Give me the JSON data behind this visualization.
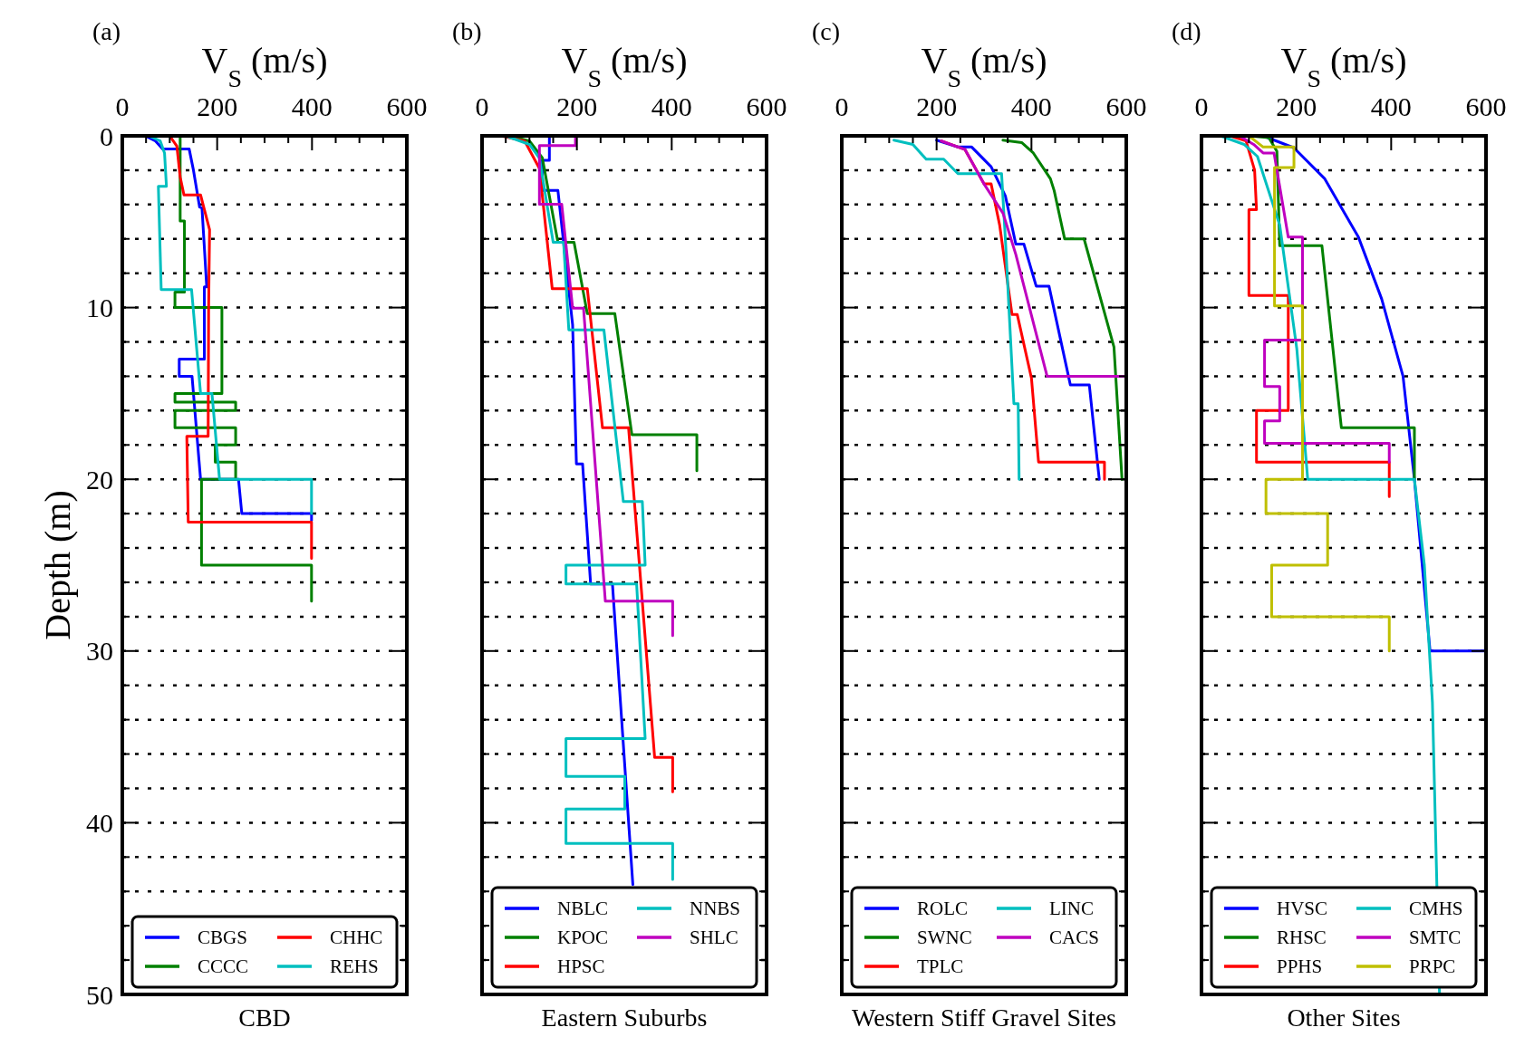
{
  "chart_data": [
    {
      "type": "line",
      "title": "(a)",
      "xlabel": "V$_{S}$ (m/s)",
      "ylabel": "Depth (m)",
      "annotations": [
        "CBD"
      ],
      "xlim": [
        0,
        600
      ],
      "ylim": [
        50,
        0
      ],
      "xticks": [
        0,
        {
          "value": 50,
          "label": null
        },
        {
          "value": 100,
          "label": null
        },
        {
          "value": 150,
          "label": null
        },
        200,
        {
          "value": 250,
          "label": null
        },
        {
          "value": 300,
          "label": null
        },
        {
          "value": 350,
          "label": null
        },
        400,
        {
          "value": 450,
          "label": null
        },
        {
          "value": 500,
          "label": null
        },
        {
          "value": 550,
          "label": null
        },
        600
      ],
      "yticks": [
        0,
        {
          "value": 2,
          "label": null
        },
        {
          "value": 4,
          "label": null
        },
        {
          "value": 6,
          "label": null
        },
        {
          "value": 8,
          "label": null
        },
        10,
        {
          "value": 12,
          "label": null
        },
        {
          "value": 14,
          "label": null
        },
        {
          "value": 16,
          "label": null
        },
        {
          "value": 18,
          "label": null
        },
        20,
        {
          "value": 22,
          "label": null
        },
        {
          "value": 24,
          "label": null
        },
        {
          "value": 26,
          "label": null
        },
        {
          "value": 28,
          "label": null
        },
        30,
        {
          "value": 32,
          "label": null
        },
        {
          "value": 34,
          "label": null
        },
        {
          "value": 36,
          "label": null
        },
        {
          "value": 38,
          "label": null
        },
        40,
        {
          "value": 42,
          "label": null
        },
        {
          "value": 44,
          "label": null
        },
        {
          "value": 46,
          "label": null
        },
        {
          "value": 48,
          "label": null
        },
        50
      ],
      "grid": "y",
      "legend": "bottom",
      "line_style": "solid",
      "series": [
        {
          "name": "CBGS",
          "color": "#0000ff",
          "x": [
            48,
            70,
            85,
            141,
            150,
            163,
            168,
            178,
            173,
            173,
            120,
            120,
            147,
            165,
            245,
            252,
            399,
            399
          ],
          "values": [
            0,
            0.3,
            0.77,
            0.77,
            2,
            4.15,
            4.2,
            8.8,
            8.8,
            13,
            13,
            14,
            14,
            20,
            20,
            22,
            22,
            22.4
          ]
        },
        {
          "name": "CCCC",
          "color": "#008000",
          "x": [
            122,
            122,
            131,
            131,
            111,
            111,
            210,
            210,
            111,
            111,
            239,
            239,
            111,
            111,
            239,
            239,
            196,
            196,
            239,
            239,
            167,
            167,
            399,
            399
          ],
          "values": [
            0,
            4.96,
            4.96,
            9.1,
            9.1,
            10,
            10,
            15,
            15,
            15.5,
            15.5,
            16,
            16,
            17,
            17,
            18,
            18,
            19,
            19,
            20,
            20,
            25,
            25,
            27.1
          ]
        },
        {
          "name": "CHHC",
          "color": "#ff0000",
          "x": [
            100,
            115,
            122,
            130,
            165,
            184,
            182,
            181,
            136,
            139,
            399,
            399
          ],
          "values": [
            0,
            0.6,
            2.4,
            3.44,
            3.44,
            5.47,
            10,
            17.5,
            17.5,
            22.5,
            22.5,
            24.6
          ]
        },
        {
          "name": "REHS",
          "color": "#00bfbf",
          "x": [
            56,
            80,
            89,
            93,
            76,
            82,
            146,
            165,
            189,
            205,
            399,
            399
          ],
          "values": [
            0,
            0.3,
            1,
            2.94,
            2.94,
            8.95,
            8.95,
            15,
            15,
            20,
            20,
            22
          ]
        }
      ]
    },
    {
      "type": "line",
      "title": "(b)",
      "xlabel": "V$_{S}$ (m/s)",
      "annotations": [
        "Eastern Suburbs"
      ],
      "xlim": [
        0,
        600
      ],
      "ylim": [
        50,
        0
      ],
      "tick_labels": "x",
      "xticks": [
        0,
        {
          "value": 50,
          "label": null
        },
        {
          "value": 100,
          "label": null
        },
        {
          "value": 150,
          "label": null
        },
        200,
        {
          "value": 250,
          "label": null
        },
        {
          "value": 300,
          "label": null
        },
        {
          "value": 350,
          "label": null
        },
        400,
        {
          "value": 450,
          "label": null
        },
        {
          "value": 500,
          "label": null
        },
        {
          "value": 550,
          "label": null
        },
        600
      ],
      "yticks": [
        0,
        {
          "value": 2,
          "label": null
        },
        {
          "value": 4,
          "label": null
        },
        {
          "value": 6,
          "label": null
        },
        {
          "value": 8,
          "label": null
        },
        10,
        {
          "value": 12,
          "label": null
        },
        {
          "value": 14,
          "label": null
        },
        {
          "value": 16,
          "label": null
        },
        {
          "value": 18,
          "label": null
        },
        20,
        {
          "value": 22,
          "label": null
        },
        {
          "value": 24,
          "label": null
        },
        {
          "value": 26,
          "label": null
        },
        {
          "value": 28,
          "label": null
        },
        30,
        {
          "value": 32,
          "label": null
        },
        {
          "value": 34,
          "label": null
        },
        {
          "value": 36,
          "label": null
        },
        {
          "value": 38,
          "label": null
        },
        40,
        {
          "value": 42,
          "label": null
        },
        {
          "value": 44,
          "label": null
        },
        {
          "value": 46,
          "label": null
        },
        {
          "value": 48,
          "label": null
        },
        50
      ],
      "grid": "y",
      "legend": "bottom",
      "line_style": "solid",
      "series": [
        {
          "name": "NBLC",
          "color": "#0000ff",
          "x": [
            142,
            142,
            127,
            127,
            160,
            191,
            199,
            212,
            229,
            275,
            318
          ],
          "values": [
            0,
            1.43,
            1.43,
            3.18,
            3.18,
            11,
            19.1,
            19.1,
            26.1,
            26.1,
            43.6
          ]
        },
        {
          "name": "KPOC",
          "color": "#008000",
          "x": [
            58,
            100,
            127,
            160,
            194,
            222,
            280,
            316,
            453,
            453
          ],
          "values": [
            0,
            0.3,
            1.27,
            6.2,
            6.2,
            10.35,
            10.35,
            17.4,
            17.4,
            19.5
          ]
        },
        {
          "name": "HPSC",
          "color": "#ff0000",
          "x": [
            40,
            90,
            121,
            148,
            222,
            254,
            309,
            364,
            402,
            402
          ],
          "values": [
            0,
            0.3,
            1.9,
            8.9,
            8.9,
            17,
            17,
            36.2,
            36.2,
            38.2
          ]
        },
        {
          "name": "NNBS",
          "color": "#00bfbf",
          "x": [
            50,
            100,
            121,
            150,
            172,
            183,
            257,
            298,
            338,
            344,
            177,
            177,
            326,
            344,
            177,
            177,
            301,
            301,
            177,
            177,
            402,
            402
          ],
          "values": [
            0,
            0.5,
            1.3,
            6.2,
            6.2,
            11.3,
            11.3,
            21.3,
            21.3,
            25,
            25,
            26.1,
            26.1,
            35.1,
            35.1,
            37.3,
            37.3,
            39.2,
            39.2,
            41.2,
            41.2,
            43.3
          ]
        },
        {
          "name": "SHLC",
          "color": "#bf00bf",
          "x": [
            197,
            197,
            121,
            121,
            168,
            191,
            214,
            260,
            402,
            402
          ],
          "values": [
            0,
            0.57,
            0.57,
            3.98,
            3.98,
            10.03,
            10.03,
            27.1,
            27.1,
            29.1
          ]
        }
      ]
    },
    {
      "type": "line",
      "title": "(c)",
      "xlabel": "V$_{S}$ (m/s)",
      "annotations": [
        "Western Stiff Gravel Sites"
      ],
      "xlim": [
        0,
        600
      ],
      "ylim": [
        50,
        0
      ],
      "tick_labels": "x",
      "xticks": [
        0,
        {
          "value": 50,
          "label": null
        },
        {
          "value": 100,
          "label": null
        },
        {
          "value": 150,
          "label": null
        },
        200,
        {
          "value": 250,
          "label": null
        },
        {
          "value": 300,
          "label": null
        },
        {
          "value": 350,
          "label": null
        },
        400,
        {
          "value": 450,
          "label": null
        },
        {
          "value": 500,
          "label": null
        },
        {
          "value": 550,
          "label": null
        },
        600
      ],
      "yticks": [
        0,
        {
          "value": 2,
          "label": null
        },
        {
          "value": 4,
          "label": null
        },
        {
          "value": 6,
          "label": null
        },
        {
          "value": 8,
          "label": null
        },
        10,
        {
          "value": 12,
          "label": null
        },
        {
          "value": 14,
          "label": null
        },
        {
          "value": 16,
          "label": null
        },
        {
          "value": 18,
          "label": null
        },
        20,
        {
          "value": 22,
          "label": null
        },
        {
          "value": 24,
          "label": null
        },
        {
          "value": 26,
          "label": null
        },
        {
          "value": 28,
          "label": null
        },
        30,
        {
          "value": 32,
          "label": null
        },
        {
          "value": 34,
          "label": null
        },
        {
          "value": 36,
          "label": null
        },
        {
          "value": 38,
          "label": null
        },
        40,
        {
          "value": 42,
          "label": null
        },
        {
          "value": 44,
          "label": null
        },
        {
          "value": 46,
          "label": null
        },
        {
          "value": 48,
          "label": null
        },
        50
      ],
      "grid": "y",
      "legend": "bottom",
      "line_style": "solid",
      "series": [
        {
          "name": "ROLC",
          "color": "#0000ff",
          "x": [
            200,
            245,
            274,
            315,
            345,
            367,
            384,
            410,
            437,
            482,
            522,
            543
          ],
          "values": [
            0.25,
            0.65,
            0.65,
            1.8,
            3.5,
            6.3,
            6.3,
            8.75,
            8.75,
            14.5,
            14.5,
            20
          ]
        },
        {
          "name": "SWNC",
          "color": "#008000",
          "x": [
            340,
            380,
            404,
            440,
            448,
            470,
            511,
            574,
            591
          ],
          "values": [
            0.25,
            0.4,
            1,
            2.5,
            3.2,
            6,
            6,
            12.3,
            20
          ]
        },
        {
          "name": "TPLC",
          "color": "#ff0000",
          "x": [
            210,
            260,
            300,
            315,
            333,
            359,
            370,
            400,
            415,
            554,
            554
          ],
          "values": [
            0.3,
            0.8,
            2.8,
            2.8,
            5.2,
            10.4,
            10.4,
            14.1,
            19,
            19,
            20
          ]
        },
        {
          "name": "LINC",
          "color": "#00bfbf",
          "x": [
            110,
            150,
            178,
            215,
            245,
            337,
            345,
            363,
            372,
            374
          ],
          "values": [
            0.25,
            0.5,
            1.36,
            1.36,
            2.2,
            2.2,
            6,
            15.6,
            15.6,
            20
          ]
        },
        {
          "name": "CACS",
          "color": "#bf00bf",
          "x": [
            210,
            260,
            300,
            340,
            367,
            433,
            600
          ],
          "values": [
            0.3,
            0.8,
            2.8,
            4.5,
            6.9,
            14,
            14
          ]
        }
      ]
    },
    {
      "type": "line",
      "title": "(d)",
      "xlabel": "V$_{S}$ (m/s)",
      "annotations": [
        "Other Sites"
      ],
      "xlim": [
        0,
        600
      ],
      "ylim": [
        50,
        0
      ],
      "tick_labels": "x",
      "xticks": [
        0,
        {
          "value": 50,
          "label": null
        },
        {
          "value": 100,
          "label": null
        },
        {
          "value": 150,
          "label": null
        },
        200,
        {
          "value": 250,
          "label": null
        },
        {
          "value": 300,
          "label": null
        },
        {
          "value": 350,
          "label": null
        },
        400,
        {
          "value": 450,
          "label": null
        },
        {
          "value": 500,
          "label": null
        },
        {
          "value": 550,
          "label": null
        },
        600
      ],
      "yticks": [
        0,
        {
          "value": 2,
          "label": null
        },
        {
          "value": 4,
          "label": null
        },
        {
          "value": 6,
          "label": null
        },
        {
          "value": 8,
          "label": null
        },
        10,
        {
          "value": 12,
          "label": null
        },
        {
          "value": 14,
          "label": null
        },
        {
          "value": 16,
          "label": null
        },
        {
          "value": 18,
          "label": null
        },
        20,
        {
          "value": 22,
          "label": null
        },
        {
          "value": 24,
          "label": null
        },
        {
          "value": 26,
          "label": null
        },
        {
          "value": 28,
          "label": null
        },
        30,
        {
          "value": 32,
          "label": null
        },
        {
          "value": 34,
          "label": null
        },
        {
          "value": 36,
          "label": null
        },
        {
          "value": 38,
          "label": null
        },
        40,
        {
          "value": 42,
          "label": null
        },
        {
          "value": 44,
          "label": null
        },
        {
          "value": 46,
          "label": null
        },
        {
          "value": 48,
          "label": null
        },
        50
      ],
      "grid": "y",
      "legend": "bottom",
      "line_style": "solid",
      "series": [
        {
          "name": "HVSC",
          "color": "#0000ff",
          "x": [
            130,
            195,
            260,
            331,
            380,
            425,
            449,
            482,
            600
          ],
          "values": [
            0,
            0.7,
            2.5,
            5.9,
            9.5,
            14,
            20,
            30,
            30
          ]
        },
        {
          "name": "RHSC",
          "color": "#008000",
          "x": [
            100,
            142,
            159,
            165,
            254,
            295,
            449,
            449
          ],
          "values": [
            0,
            0.1,
            0.9,
            6.4,
            6.4,
            17,
            17,
            20
          ]
        },
        {
          "name": "PPHS",
          "color": "#ff0000",
          "x": [
            60,
            94,
            112,
            116,
            100,
            100,
            183,
            183,
            116,
            116,
            396,
            396
          ],
          "values": [
            0,
            0.3,
            2,
            4.3,
            4.3,
            9.3,
            9.3,
            16,
            16,
            19,
            19,
            21
          ]
        },
        {
          "name": "CMHS",
          "color": "#00bfbf",
          "x": [
            40,
            90,
            118,
            165,
            201,
            224,
            449,
            470,
            487,
            502
          ],
          "values": [
            0,
            0.5,
            1.2,
            5.2,
            12.4,
            20,
            20,
            25,
            33,
            50
          ]
        },
        {
          "name": "SMTC",
          "color": "#bf00bf",
          "x": [
            80,
            110,
            130,
            153,
            183,
            213,
            213,
            133,
            133,
            165,
            165,
            133,
            133,
            396,
            396
          ],
          "values": [
            0,
            0.5,
            1,
            1,
            5.9,
            5.9,
            11.9,
            11.9,
            14.6,
            14.6,
            16.6,
            16.6,
            17.9,
            17.9,
            19
          ]
        },
        {
          "name": "PRPC",
          "color": "#bfbf00",
          "x": [
            100,
            130,
            195,
            195,
            154,
            154,
            213,
            213,
            136,
            136,
            266,
            266,
            148,
            148,
            396,
            396
          ],
          "values": [
            0,
            0.65,
            0.65,
            1.85,
            1.85,
            9.9,
            9.9,
            20,
            20,
            22,
            22,
            25,
            25,
            28,
            28,
            30
          ]
        }
      ]
    }
  ]
}
